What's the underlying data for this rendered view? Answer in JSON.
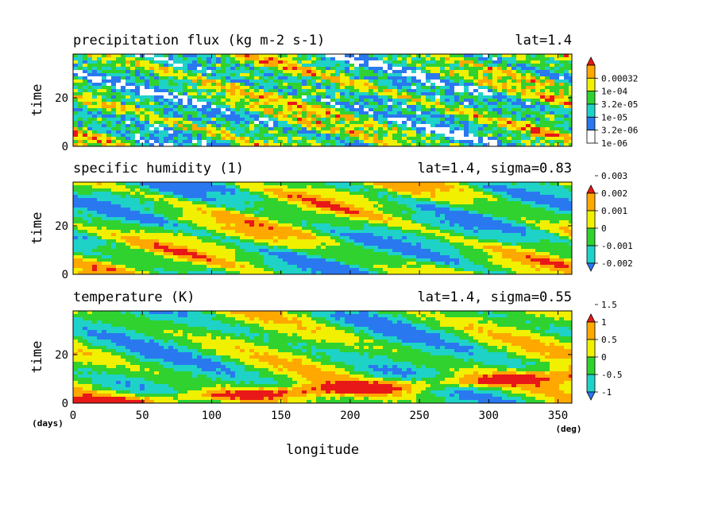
{
  "figure": {
    "xlabel": "longitude",
    "x_unit_label": "(deg)",
    "y_unit_label": "(days)",
    "ylabel": "time"
  },
  "palette": {
    "white": "#ffffff",
    "blue": "#2a78f0",
    "cyan": "#1ed2c8",
    "green": "#30d230",
    "yellow": "#f0f000",
    "orange": "#ffa800",
    "red": "#e81818"
  },
  "chart_data": [
    {
      "type": "heatmap",
      "title": "precipitation flux (kg m-2 s-1)",
      "annotation": "lat=1.4",
      "xlabel": "longitude",
      "ylabel": "time",
      "xlim": [
        0,
        360
      ],
      "ylim": [
        0,
        38
      ],
      "x_ticks": [
        0,
        50,
        100,
        150,
        200,
        250,
        300,
        350
      ],
      "y_ticks": [
        0,
        20
      ],
      "x_ticklabels_shown": false,
      "colorbar": {
        "levels": [
          "1e-06",
          "3.2e-06",
          "1e-05",
          "3.2e-05",
          "1e-04",
          "0.00032"
        ],
        "colors": [
          "#ffffff",
          "#2a78f0",
          "#1ed2c8",
          "#30d230",
          "#f0f000",
          "#ffa800",
          "#e81818"
        ],
        "extend": "max"
      },
      "field_style": "noisy"
    },
    {
      "type": "heatmap",
      "title": "specific humidity (1)",
      "annotation": "lat=1.4, sigma=0.83",
      "xlabel": "longitude",
      "ylabel": "time",
      "xlim": [
        0,
        360
      ],
      "ylim": [
        0,
        38
      ],
      "x_ticks": [
        0,
        50,
        100,
        150,
        200,
        250,
        300,
        350
      ],
      "y_ticks": [
        0,
        20
      ],
      "x_ticklabels_shown": false,
      "colorbar": {
        "levels": [
          "-0.002",
          "-0.001",
          "0",
          "0.001",
          "0.002",
          "0.003"
        ],
        "colors": [
          "#2a78f0",
          "#1ed2c8",
          "#30d230",
          "#f0f000",
          "#ffa800",
          "#e81818"
        ],
        "extend": "both"
      },
      "field_style": "smooth"
    },
    {
      "type": "heatmap",
      "title": "temperature (K)",
      "annotation": "lat=1.4, sigma=0.55",
      "xlabel": "longitude",
      "ylabel": "time",
      "xlim": [
        0,
        360
      ],
      "ylim": [
        0,
        38
      ],
      "x_ticks": [
        0,
        50,
        100,
        150,
        200,
        250,
        300,
        350
      ],
      "y_ticks": [
        0,
        20
      ],
      "x_ticklabels_shown": true,
      "colorbar": {
        "levels": [
          "-1",
          "-0.5",
          "0",
          "0.5",
          "1",
          "1.5"
        ],
        "colors": [
          "#2a78f0",
          "#1ed2c8",
          "#30d230",
          "#f0f000",
          "#ffa800",
          "#e81818"
        ],
        "extend": "both"
      },
      "field_style": "waves"
    }
  ]
}
